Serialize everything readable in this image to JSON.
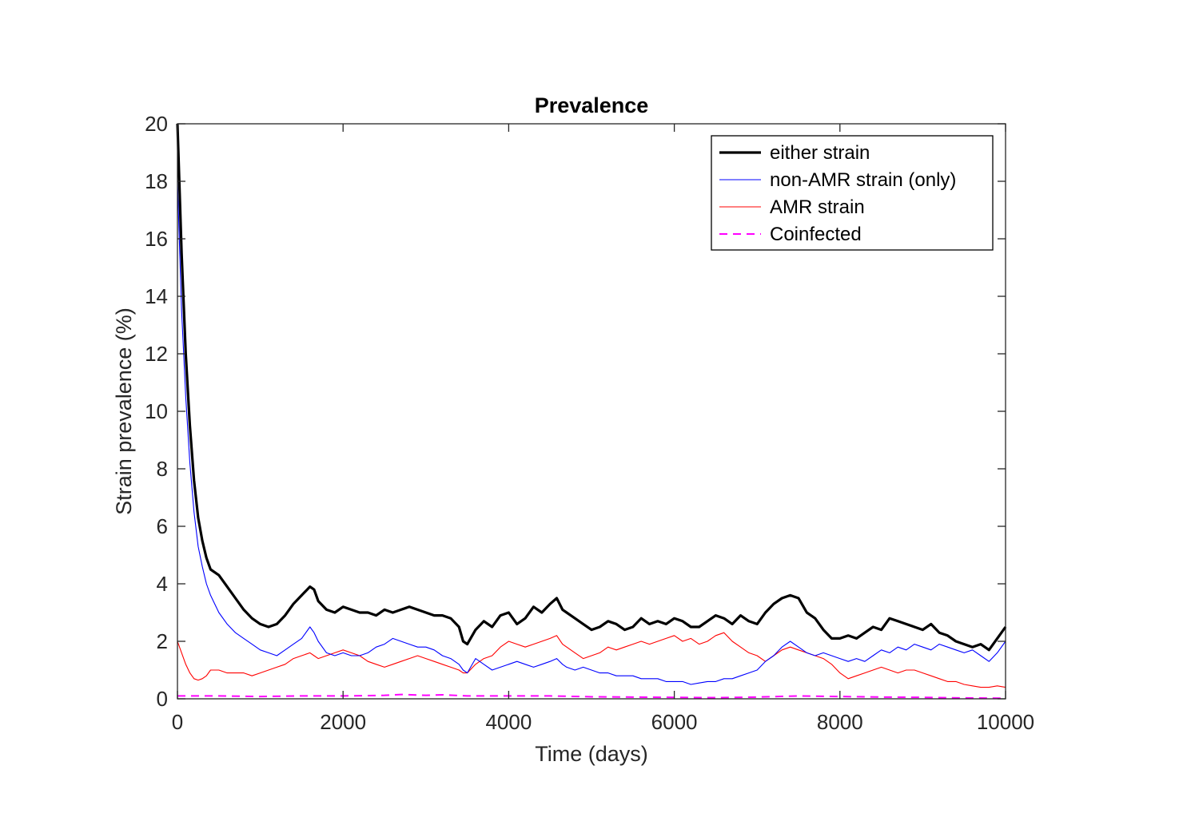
{
  "chart_data": {
    "type": "line",
    "title": "Prevalence",
    "xlabel": "Time (days)",
    "ylabel": "Strain prevalence (%)",
    "xlim": [
      0,
      10000
    ],
    "ylim": [
      0,
      20
    ],
    "xticks": [
      0,
      2000,
      4000,
      6000,
      8000,
      10000
    ],
    "yticks": [
      0,
      2,
      4,
      6,
      8,
      10,
      12,
      14,
      16,
      18,
      20
    ],
    "grid": false,
    "legend_position": "top-right",
    "series": [
      {
        "name": "either strain",
        "color": "#000000",
        "style": "solid-thick",
        "x": [
          0,
          50,
          100,
          150,
          200,
          250,
          300,
          350,
          400,
          500,
          600,
          700,
          800,
          900,
          1000,
          1100,
          1200,
          1300,
          1400,
          1500,
          1600,
          1650,
          1700,
          1800,
          1900,
          2000,
          2100,
          2200,
          2300,
          2400,
          2500,
          2600,
          2700,
          2800,
          2900,
          3000,
          3100,
          3200,
          3300,
          3400,
          3450,
          3500,
          3600,
          3700,
          3800,
          3900,
          4000,
          4100,
          4200,
          4300,
          4400,
          4500,
          4580,
          4650,
          4700,
          4800,
          4900,
          5000,
          5100,
          5200,
          5300,
          5400,
          5500,
          5600,
          5700,
          5800,
          5900,
          6000,
          6100,
          6200,
          6300,
          6400,
          6500,
          6600,
          6700,
          6800,
          6900,
          7000,
          7100,
          7200,
          7300,
          7400,
          7500,
          7600,
          7700,
          7800,
          7900,
          8000,
          8100,
          8200,
          8300,
          8400,
          8500,
          8600,
          8700,
          8800,
          8900,
          9000,
          9100,
          9200,
          9300,
          9400,
          9500,
          9600,
          9700,
          9800,
          9900,
          10000
        ],
        "y": [
          20,
          15.5,
          12.0,
          9.5,
          7.6,
          6.3,
          5.5,
          4.9,
          4.5,
          4.3,
          3.9,
          3.5,
          3.1,
          2.8,
          2.6,
          2.5,
          2.6,
          2.9,
          3.3,
          3.6,
          3.9,
          3.8,
          3.4,
          3.1,
          3.0,
          3.2,
          3.1,
          3.0,
          3.0,
          2.9,
          3.1,
          3.0,
          3.1,
          3.2,
          3.1,
          3.0,
          2.9,
          2.9,
          2.8,
          2.5,
          2.0,
          1.9,
          2.4,
          2.7,
          2.5,
          2.9,
          3.0,
          2.6,
          2.8,
          3.2,
          3.0,
          3.3,
          3.5,
          3.1,
          3.0,
          2.8,
          2.6,
          2.4,
          2.5,
          2.7,
          2.6,
          2.4,
          2.5,
          2.8,
          2.6,
          2.7,
          2.6,
          2.8,
          2.7,
          2.5,
          2.5,
          2.7,
          2.9,
          2.8,
          2.6,
          2.9,
          2.7,
          2.6,
          3.0,
          3.3,
          3.5,
          3.6,
          3.5,
          3.0,
          2.8,
          2.4,
          2.1,
          2.1,
          2.2,
          2.1,
          2.3,
          2.5,
          2.4,
          2.8,
          2.7,
          2.6,
          2.5,
          2.4,
          2.6,
          2.3,
          2.2,
          2.0,
          1.9,
          1.8,
          1.9,
          1.7,
          2.1,
          2.5
        ]
      },
      {
        "name": "non-AMR strain (only)",
        "color": "#0000ff",
        "style": "solid-thin",
        "x": [
          0,
          50,
          100,
          150,
          200,
          250,
          300,
          350,
          400,
          500,
          600,
          700,
          800,
          900,
          1000,
          1100,
          1200,
          1300,
          1400,
          1500,
          1600,
          1650,
          1700,
          1800,
          1900,
          2000,
          2100,
          2200,
          2300,
          2400,
          2500,
          2600,
          2700,
          2800,
          2900,
          3000,
          3100,
          3200,
          3300,
          3400,
          3450,
          3500,
          3600,
          3700,
          3800,
          3900,
          4000,
          4100,
          4200,
          4300,
          4400,
          4500,
          4580,
          4650,
          4700,
          4800,
          4900,
          5000,
          5100,
          5200,
          5300,
          5400,
          5500,
          5600,
          5700,
          5800,
          5900,
          6000,
          6100,
          6200,
          6300,
          6400,
          6500,
          6600,
          6700,
          6800,
          6900,
          7000,
          7100,
          7200,
          7300,
          7400,
          7500,
          7600,
          7700,
          7800,
          7900,
          8000,
          8100,
          8200,
          8300,
          8400,
          8500,
          8600,
          8700,
          8800,
          8900,
          9000,
          9100,
          9200,
          9300,
          9400,
          9500,
          9600,
          9700,
          9800,
          9900,
          10000
        ],
        "y": [
          18,
          13.5,
          10.5,
          8.2,
          6.5,
          5.3,
          4.6,
          4.0,
          3.6,
          3.0,
          2.6,
          2.3,
          2.1,
          1.9,
          1.7,
          1.6,
          1.5,
          1.7,
          1.9,
          2.1,
          2.5,
          2.3,
          2.0,
          1.6,
          1.5,
          1.6,
          1.5,
          1.5,
          1.6,
          1.8,
          1.9,
          2.1,
          2.0,
          1.9,
          1.8,
          1.8,
          1.7,
          1.5,
          1.4,
          1.2,
          1.0,
          0.9,
          1.4,
          1.2,
          1.0,
          1.1,
          1.2,
          1.3,
          1.2,
          1.1,
          1.2,
          1.3,
          1.4,
          1.2,
          1.1,
          1.0,
          1.1,
          1.0,
          0.9,
          0.9,
          0.8,
          0.8,
          0.8,
          0.7,
          0.7,
          0.7,
          0.6,
          0.6,
          0.6,
          0.5,
          0.55,
          0.6,
          0.6,
          0.7,
          0.7,
          0.8,
          0.9,
          1.0,
          1.3,
          1.5,
          1.8,
          2.0,
          1.8,
          1.6,
          1.5,
          1.6,
          1.5,
          1.4,
          1.3,
          1.4,
          1.3,
          1.5,
          1.7,
          1.6,
          1.8,
          1.7,
          1.9,
          1.8,
          1.7,
          1.9,
          1.8,
          1.7,
          1.6,
          1.7,
          1.5,
          1.3,
          1.6,
          2.0
        ]
      },
      {
        "name": "AMR strain",
        "color": "#ff0000",
        "style": "solid-thin",
        "x": [
          0,
          50,
          100,
          150,
          200,
          250,
          300,
          350,
          400,
          500,
          600,
          700,
          800,
          900,
          1000,
          1100,
          1200,
          1300,
          1400,
          1500,
          1600,
          1650,
          1700,
          1800,
          1900,
          2000,
          2100,
          2200,
          2300,
          2400,
          2500,
          2600,
          2700,
          2800,
          2900,
          3000,
          3100,
          3200,
          3300,
          3400,
          3450,
          3500,
          3600,
          3700,
          3800,
          3900,
          4000,
          4100,
          4200,
          4300,
          4400,
          4500,
          4580,
          4650,
          4700,
          4800,
          4900,
          5000,
          5100,
          5200,
          5300,
          5400,
          5500,
          5600,
          5700,
          5800,
          5900,
          6000,
          6100,
          6200,
          6300,
          6400,
          6500,
          6600,
          6700,
          6800,
          6900,
          7000,
          7100,
          7200,
          7300,
          7400,
          7500,
          7600,
          7700,
          7800,
          7900,
          8000,
          8100,
          8200,
          8300,
          8400,
          8500,
          8600,
          8700,
          8800,
          8900,
          9000,
          9100,
          9200,
          9300,
          9400,
          9500,
          9600,
          9700,
          9800,
          9900,
          10000
        ],
        "y": [
          2.0,
          1.6,
          1.2,
          0.9,
          0.7,
          0.65,
          0.7,
          0.8,
          1.0,
          1.0,
          0.9,
          0.9,
          0.9,
          0.8,
          0.9,
          1.0,
          1.1,
          1.2,
          1.4,
          1.5,
          1.6,
          1.5,
          1.4,
          1.5,
          1.6,
          1.7,
          1.6,
          1.5,
          1.3,
          1.2,
          1.1,
          1.2,
          1.3,
          1.4,
          1.5,
          1.4,
          1.3,
          1.2,
          1.1,
          1.0,
          0.9,
          0.9,
          1.2,
          1.4,
          1.5,
          1.8,
          2.0,
          1.9,
          1.8,
          1.9,
          2.0,
          2.1,
          2.2,
          1.9,
          1.8,
          1.6,
          1.4,
          1.5,
          1.6,
          1.8,
          1.7,
          1.8,
          1.9,
          2.0,
          1.9,
          2.0,
          2.1,
          2.2,
          2.0,
          2.1,
          1.9,
          2.0,
          2.2,
          2.3,
          2.0,
          1.8,
          1.6,
          1.5,
          1.3,
          1.5,
          1.7,
          1.8,
          1.7,
          1.6,
          1.5,
          1.4,
          1.2,
          0.9,
          0.7,
          0.8,
          0.9,
          1.0,
          1.1,
          1.0,
          0.9,
          1.0,
          1.0,
          0.9,
          0.8,
          0.7,
          0.6,
          0.6,
          0.5,
          0.45,
          0.4,
          0.4,
          0.45,
          0.4
        ]
      },
      {
        "name": "Coinfected",
        "color": "#ff00ff",
        "style": "dashed",
        "x": [
          0,
          500,
          1000,
          1500,
          2000,
          2500,
          2700,
          3000,
          3200,
          3500,
          4000,
          4500,
          5000,
          5500,
          6000,
          6500,
          7000,
          7500,
          8000,
          8500,
          9000,
          9500,
          10000
        ],
        "y": [
          0.1,
          0.1,
          0.08,
          0.1,
          0.1,
          0.12,
          0.15,
          0.12,
          0.14,
          0.1,
          0.1,
          0.1,
          0.07,
          0.06,
          0.05,
          0.04,
          0.06,
          0.1,
          0.08,
          0.06,
          0.05,
          0.03,
          0.02
        ]
      }
    ]
  }
}
